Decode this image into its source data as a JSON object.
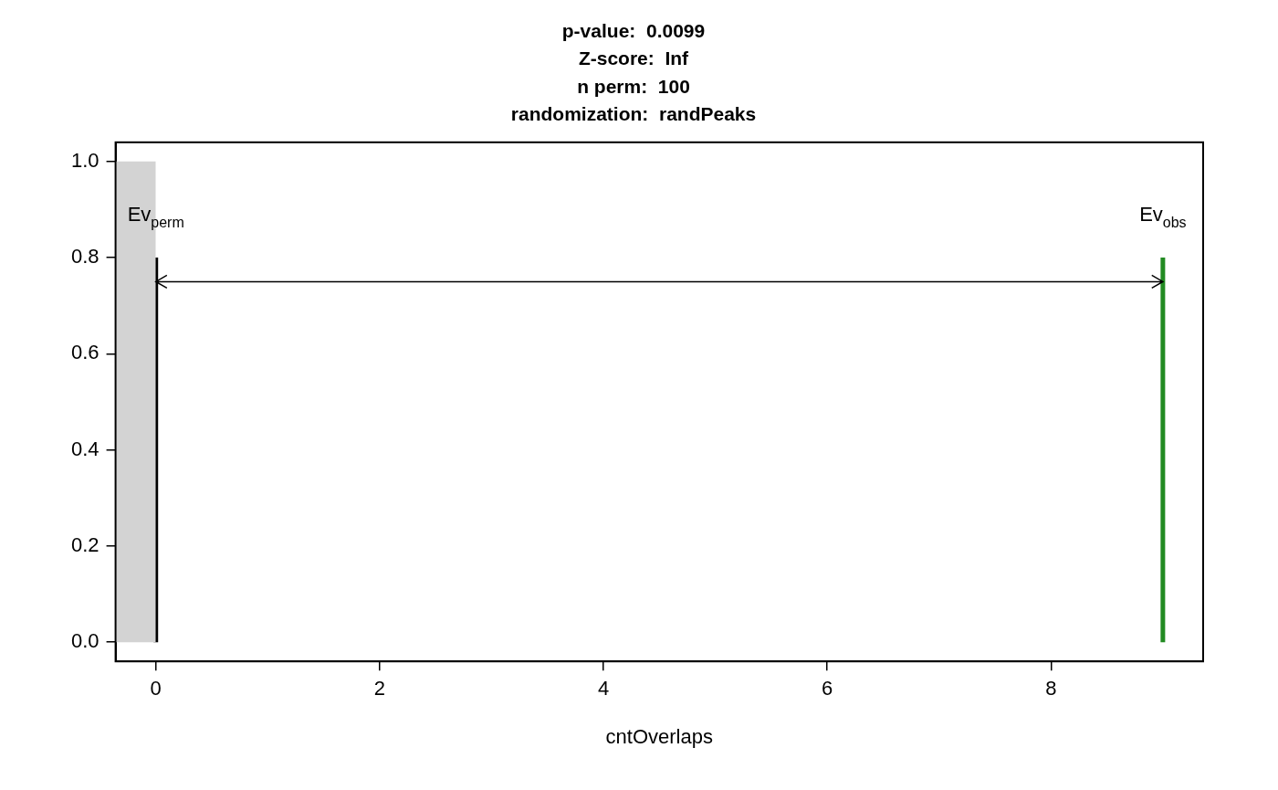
{
  "chart_data": {
    "type": "histogram",
    "title": [
      "p-value:  0.0099",
      "Z-score:  Inf",
      "n perm:  100",
      "randomization:  randPeaks"
    ],
    "x_label": "cntOverlaps",
    "bins": [
      -0.36,
      0
    ],
    "counts": [
      1
    ],
    "color": "#d3d3d3",
    "markers": [
      {
        "label": "Ev",
        "subscript": "perm",
        "x": 0,
        "ymax": 0.8,
        "color": "#000000"
      },
      {
        "label": "Ev",
        "subscript": "obs",
        "x": 9,
        "ymax": 0.8,
        "color": "#228b22"
      }
    ],
    "arrow": {
      "from": 0,
      "to": 9,
      "y": 0.75
    },
    "xlim": [
      -0.36,
      9.36
    ],
    "xticks": [
      0,
      2,
      4,
      6,
      8
    ],
    "ylim": [
      -0.04,
      1.04
    ],
    "yticks": [
      {
        "value": 0,
        "label": "0.0"
      },
      0.2,
      0.4,
      0.6,
      0.8,
      {
        "value": 1,
        "label": "1.0"
      }
    ],
    "grid": false
  }
}
